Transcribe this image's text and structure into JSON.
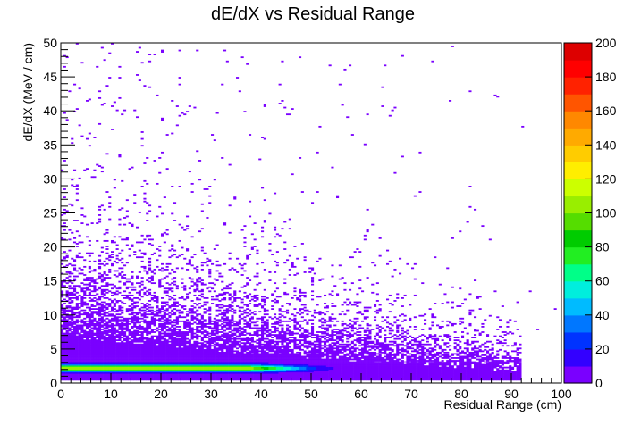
{
  "chart_data": {
    "type": "heatmap",
    "title": "dE/dX vs Residual Range",
    "xlabel": "Residual Range (cm)",
    "ylabel": "dE/dX (MeV / cm)",
    "xlim": [
      0,
      100
    ],
    "ylim": [
      0,
      50
    ],
    "x_ticks": [
      "0",
      "10",
      "20",
      "30",
      "40",
      "50",
      "60",
      "70",
      "80",
      "90",
      "100"
    ],
    "y_ticks": [
      "0",
      "5",
      "10",
      "15",
      "20",
      "25",
      "30",
      "35",
      "40",
      "45",
      "50"
    ],
    "colorbar": {
      "min": 0,
      "max": 200,
      "ticks": [
        "0",
        "20",
        "40",
        "60",
        "80",
        "100",
        "120",
        "140",
        "160",
        "180",
        "200"
      ],
      "colors": [
        "#7a00ff",
        "#3300ff",
        "#0033ff",
        "#0077ff",
        "#00bbff",
        "#00eedd",
        "#00ff88",
        "#22ee22",
        "#00cc00",
        "#55dd00",
        "#99ee00",
        "#ccff00",
        "#ffee00",
        "#ffcc00",
        "#ffaa00",
        "#ff8800",
        "#ff5500",
        "#ff2200",
        "#ff0000",
        "#dd0000"
      ]
    },
    "grid": false,
    "legend": "colorbar-right",
    "density_description": {
      "band_center_dedx": 2.2,
      "band_x_range": [
        0,
        92
      ],
      "peak_count_approx": 110
    }
  }
}
